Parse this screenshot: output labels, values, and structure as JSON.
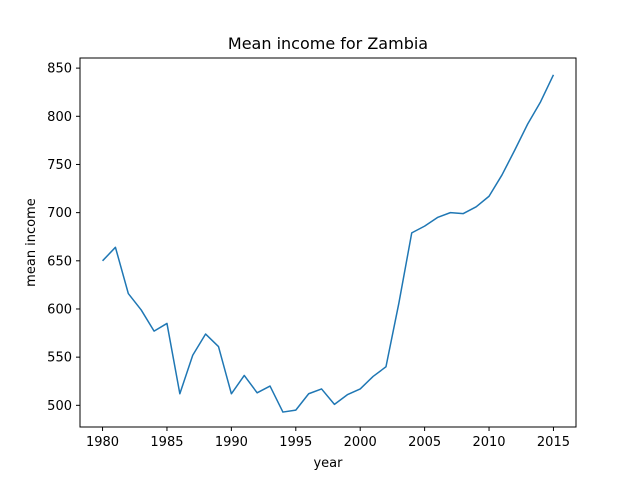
{
  "chart_data": {
    "type": "line",
    "title": "Mean income for Zambia",
    "xlabel": "year",
    "ylabel": "mean income",
    "xlim": [
      1978.25,
      2016.75
    ],
    "ylim": [
      477.5,
      860.5
    ],
    "xticks": [
      1980,
      1985,
      1990,
      1995,
      2000,
      2005,
      2010,
      2015
    ],
    "yticks": [
      500,
      550,
      600,
      650,
      700,
      750,
      800,
      850
    ],
    "grid": false,
    "line_color": "#1f77b4",
    "series": [
      {
        "x": [
          1980,
          1981,
          1982,
          1983,
          1984,
          1985,
          1986,
          1987,
          1988,
          1989,
          1990,
          1991,
          1992,
          1993,
          1994,
          1995,
          1996,
          1997,
          1998,
          1999,
          2000,
          2001,
          2002,
          2003,
          2004,
          2005,
          2006,
          2007,
          2008,
          2009,
          2010,
          2011,
          2012,
          2013,
          2014,
          2015
        ],
        "values": [
          650,
          664,
          616,
          599,
          577,
          585,
          512,
          552,
          574,
          561,
          512,
          531,
          513,
          520,
          493,
          495,
          512,
          517,
          501,
          511,
          517,
          530,
          540,
          606,
          679,
          686,
          695,
          700,
          699,
          706,
          717,
          739,
          765,
          792,
          815,
          843
        ]
      }
    ]
  }
}
